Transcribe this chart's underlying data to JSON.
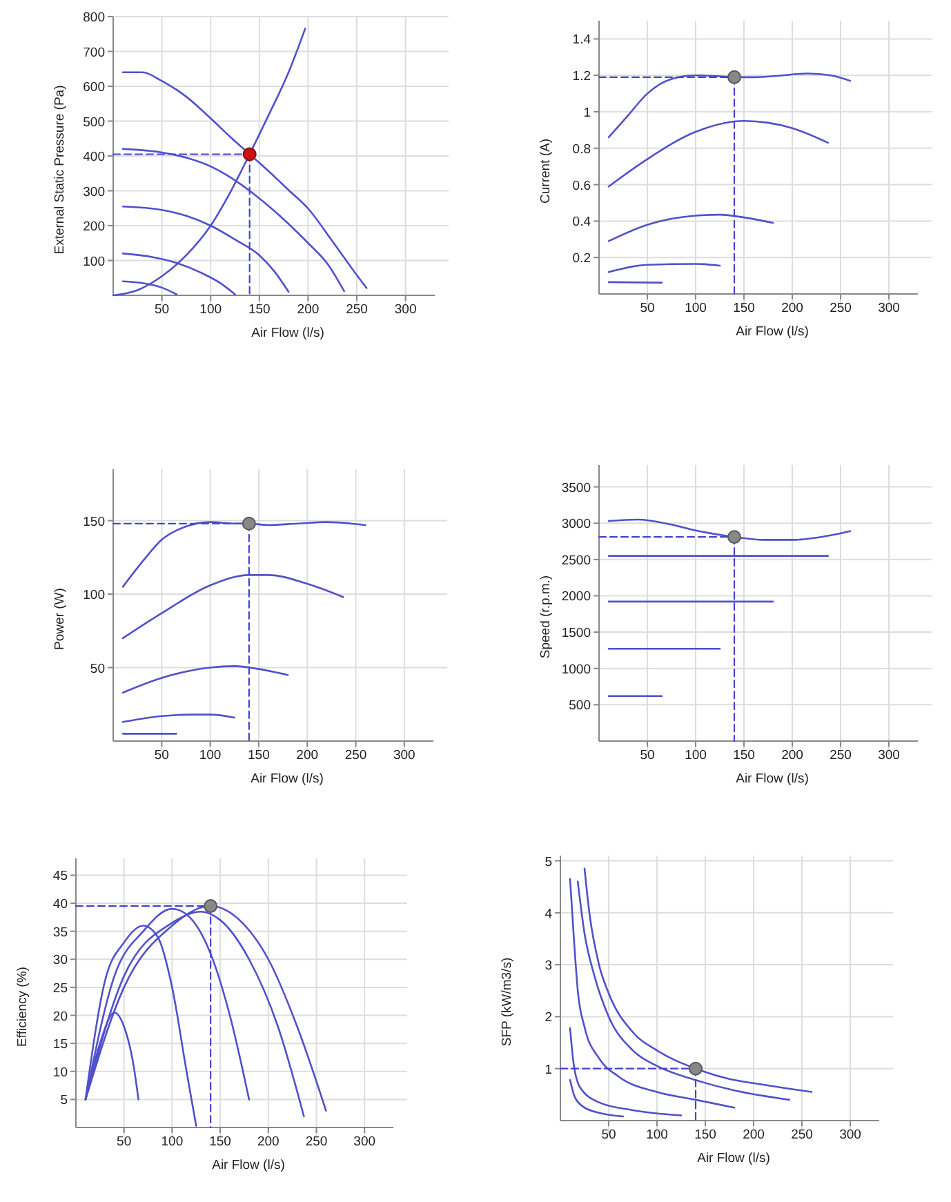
{
  "chart_data": [
    {
      "type": "line",
      "xlabel": "Air Flow (l/s)",
      "ylabel": "External Static Pressure (Pa)",
      "xlim": [
        0,
        330
      ],
      "xticks": [
        50,
        100,
        150,
        200,
        250,
        300
      ],
      "ylim": [
        0,
        800
      ],
      "yticks": [
        100,
        200,
        300,
        400,
        500,
        600,
        700,
        800
      ],
      "grid": true,
      "series": [
        {
          "color": "#5050cc",
          "x": [
            10,
            30,
            50,
            75,
            100,
            120,
            140,
            160,
            180,
            200,
            225,
            250,
            260
          ],
          "values": [
            640,
            640,
            615,
            570,
            508,
            455,
            405,
            355,
            302,
            249,
            155,
            58,
            21
          ]
        },
        {
          "color": "#5050cc",
          "x": [
            10,
            50,
            75,
            100,
            125,
            140,
            160,
            180,
            200,
            220,
            237
          ],
          "values": [
            420,
            410,
            395,
            370,
            330,
            300,
            255,
            205,
            150,
            90,
            12
          ]
        },
        {
          "color": "#5050cc",
          "x": [
            10,
            50,
            75,
            100,
            125,
            150,
            165,
            180
          ],
          "values": [
            255,
            245,
            228,
            200,
            160,
            115,
            70,
            10
          ]
        },
        {
          "color": "#5050cc",
          "x": [
            10,
            40,
            65,
            90,
            110,
            125
          ],
          "values": [
            120,
            110,
            93,
            65,
            35,
            3
          ]
        },
        {
          "color": "#5050cc",
          "x": [
            10,
            30,
            50,
            65
          ],
          "values": [
            40,
            35,
            22,
            3
          ]
        },
        {
          "color": "#5050cc",
          "x": [
            0,
            25,
            50,
            75,
            100,
            120,
            140,
            160,
            180,
            197
          ],
          "values": [
            0,
            15,
            55,
            115,
            200,
            295,
            405,
            520,
            640,
            765
          ]
        },
        {
          "type": "line",
          "line_style": "dashed",
          "color": "#4444cc",
          "x": [
            0,
            140
          ],
          "values": [
            405,
            405
          ]
        },
        {
          "type": "line",
          "line_style": "dashed",
          "color": "#4444cc",
          "x": [
            140,
            140
          ],
          "values": [
            405,
            0
          ]
        },
        {
          "type": "scatter",
          "marker": "circle",
          "color": "#cc1111",
          "x": [
            140
          ],
          "values": [
            405
          ]
        }
      ]
    },
    {
      "type": "line",
      "xlabel": "Air Flow (l/s)",
      "ylabel": "Current (A)",
      "xlim": [
        0,
        330
      ],
      "xticks": [
        50,
        100,
        150,
        200,
        250,
        300
      ],
      "ylim": [
        0,
        1.5
      ],
      "yticks": [
        0.2,
        0.4,
        0.6,
        0.8,
        1,
        1.2,
        1.4
      ],
      "grid": true,
      "series": [
        {
          "color": "#5050cc",
          "x": [
            10,
            30,
            50,
            75,
            100,
            125,
            140,
            160,
            190,
            215,
            240,
            260
          ],
          "values": [
            0.86,
            0.98,
            1.1,
            1.18,
            1.2,
            1.195,
            1.19,
            1.19,
            1.2,
            1.21,
            1.2,
            1.17
          ]
        },
        {
          "color": "#5050cc",
          "x": [
            10,
            50,
            100,
            150,
            175,
            200,
            237
          ],
          "values": [
            0.59,
            0.74,
            0.89,
            0.95,
            0.94,
            0.91,
            0.83
          ]
        },
        {
          "color": "#5050cc",
          "x": [
            10,
            50,
            100,
            125,
            150,
            180
          ],
          "values": [
            0.29,
            0.38,
            0.43,
            0.435,
            0.42,
            0.39
          ]
        },
        {
          "color": "#5050cc",
          "x": [
            10,
            50,
            100,
            125
          ],
          "values": [
            0.12,
            0.16,
            0.165,
            0.155
          ]
        },
        {
          "color": "#5050cc",
          "x": [
            10,
            65
          ],
          "values": [
            0.065,
            0.062
          ]
        },
        {
          "type": "line",
          "line_style": "dashed",
          "color": "#4444cc",
          "x": [
            0,
            140
          ],
          "values": [
            1.19,
            1.19
          ]
        },
        {
          "type": "line",
          "line_style": "dashed",
          "color": "#4444cc",
          "x": [
            140,
            140
          ],
          "values": [
            1.19,
            0
          ]
        },
        {
          "type": "scatter",
          "marker": "circle",
          "color": "#888888",
          "x": [
            140
          ],
          "values": [
            1.19
          ]
        }
      ]
    },
    {
      "type": "line",
      "xlabel": "Air Flow (l/s)",
      "ylabel": "Power (W)",
      "xlim": [
        0,
        330
      ],
      "xticks": [
        50,
        100,
        150,
        200,
        250,
        300
      ],
      "ylim": [
        0,
        185
      ],
      "yticks": [
        50,
        100,
        150
      ],
      "grid": true,
      "series": [
        {
          "color": "#5050cc",
          "x": [
            10,
            30,
            50,
            75,
            100,
            125,
            140,
            160,
            190,
            220,
            260
          ],
          "values": [
            105,
            122,
            137,
            146,
            149,
            148,
            148,
            147,
            148,
            149,
            147
          ]
        },
        {
          "color": "#5050cc",
          "x": [
            10,
            50,
            100,
            140,
            160,
            200,
            237
          ],
          "values": [
            70,
            87,
            106,
            113,
            113,
            107,
            98
          ]
        },
        {
          "color": "#5050cc",
          "x": [
            10,
            50,
            100,
            125,
            150,
            180
          ],
          "values": [
            33,
            43,
            50,
            51,
            49,
            45
          ]
        },
        {
          "color": "#5050cc",
          "x": [
            10,
            50,
            80,
            100,
            125
          ],
          "values": [
            13,
            17,
            18,
            18,
            16
          ]
        },
        {
          "color": "#5050cc",
          "x": [
            10,
            65
          ],
          "values": [
            5,
            5
          ]
        },
        {
          "type": "line",
          "line_style": "dashed",
          "color": "#4444cc",
          "x": [
            0,
            140
          ],
          "values": [
            148,
            148
          ]
        },
        {
          "type": "line",
          "line_style": "dashed",
          "color": "#4444cc",
          "x": [
            140,
            140
          ],
          "values": [
            148,
            0
          ]
        },
        {
          "type": "scatter",
          "marker": "circle",
          "color": "#888888",
          "x": [
            140
          ],
          "values": [
            148
          ]
        }
      ]
    },
    {
      "type": "line",
      "xlabel": "Air Flow (l/s)",
      "ylabel": "Speed (r.p.m.)",
      "xlim": [
        0,
        330
      ],
      "xticks": [
        50,
        100,
        150,
        200,
        250,
        300
      ],
      "ylim": [
        0,
        3800
      ],
      "yticks": [
        500,
        1000,
        1500,
        2000,
        2500,
        3000,
        3500
      ],
      "grid": true,
      "series": [
        {
          "color": "#5050cc",
          "x": [
            10,
            40,
            75,
            100,
            140,
            170,
            200,
            230,
            260
          ],
          "values": [
            3030,
            3050,
            2980,
            2900,
            2810,
            2770,
            2770,
            2810,
            2890
          ]
        },
        {
          "color": "#5050cc",
          "x": [
            10,
            237
          ],
          "values": [
            2550,
            2550
          ]
        },
        {
          "color": "#5050cc",
          "x": [
            10,
            180
          ],
          "values": [
            1920,
            1920
          ]
        },
        {
          "color": "#5050cc",
          "x": [
            10,
            125
          ],
          "values": [
            1270,
            1270
          ]
        },
        {
          "color": "#5050cc",
          "x": [
            10,
            65
          ],
          "values": [
            620,
            620
          ]
        },
        {
          "type": "line",
          "line_style": "dashed",
          "color": "#4444cc",
          "x": [
            0,
            140
          ],
          "values": [
            2810,
            2810
          ]
        },
        {
          "type": "line",
          "line_style": "dashed",
          "color": "#4444cc",
          "x": [
            140,
            140
          ],
          "values": [
            2810,
            0
          ]
        },
        {
          "type": "scatter",
          "marker": "circle",
          "color": "#888888",
          "x": [
            140
          ],
          "values": [
            2810
          ]
        }
      ]
    },
    {
      "type": "line",
      "xlabel": "Air Flow (l/s)",
      "ylabel": "Efficiency (%)",
      "xlim": [
        0,
        330
      ],
      "xticks": [
        50,
        100,
        150,
        200,
        250,
        300
      ],
      "ylim": [
        0,
        48
      ],
      "yticks": [
        5,
        10,
        15,
        20,
        25,
        30,
        35,
        40,
        45
      ],
      "grid": true,
      "series": [
        {
          "color": "#5050cc",
          "x": [
            10,
            50,
            100,
            140,
            170,
            200,
            230,
            260
          ],
          "values": [
            5,
            25,
            36,
            39.5,
            37,
            30,
            18,
            3
          ]
        },
        {
          "color": "#5050cc",
          "x": [
            10,
            50,
            100,
            130,
            150,
            180,
            210,
            237
          ],
          "values": [
            5,
            27,
            36.5,
            38.5,
            37,
            30,
            18,
            2
          ]
        },
        {
          "color": "#5050cc",
          "x": [
            10,
            40,
            70,
            100,
            115,
            140,
            160,
            180
          ],
          "values": [
            5,
            27,
            35,
            39,
            38,
            31,
            20,
            5
          ]
        },
        {
          "color": "#5050cc",
          "x": [
            10,
            30,
            50,
            70,
            85,
            100,
            115,
            125
          ],
          "values": [
            5,
            26,
            33,
            36,
            34,
            25,
            10,
            0.3
          ]
        },
        {
          "color": "#5050cc",
          "x": [
            10,
            25,
            40,
            50,
            60,
            65
          ],
          "values": [
            5,
            15,
            20.5,
            18,
            11,
            5
          ]
        },
        {
          "type": "line",
          "line_style": "dashed",
          "color": "#4444cc",
          "x": [
            0,
            140
          ],
          "values": [
            39.5,
            39.5
          ]
        },
        {
          "type": "line",
          "line_style": "dashed",
          "color": "#4444cc",
          "x": [
            140,
            140
          ],
          "values": [
            39.5,
            0
          ]
        },
        {
          "type": "scatter",
          "marker": "circle",
          "color": "#888888",
          "x": [
            140
          ],
          "values": [
            39.5
          ]
        }
      ]
    },
    {
      "type": "line",
      "xlabel": "Air Flow (l/s)",
      "ylabel": "SFP (kW/m3/s)",
      "xlim": [
        0,
        330
      ],
      "xticks": [
        50,
        100,
        150,
        200,
        250,
        300
      ],
      "ylim": [
        0,
        5.1
      ],
      "yticks": [
        1,
        2,
        3,
        4,
        5
      ],
      "grid": true,
      "series": [
        {
          "color": "#5050cc",
          "x": [
            25,
            30,
            40,
            50,
            75,
            100,
            140,
            175,
            200,
            260
          ],
          "values": [
            4.85,
            4.0,
            3.0,
            2.45,
            1.7,
            1.35,
            1.0,
            0.8,
            0.72,
            0.55
          ]
        },
        {
          "color": "#5050cc",
          "x": [
            18,
            25,
            35,
            50,
            75,
            100,
            140,
            180,
            237
          ],
          "values": [
            4.6,
            3.6,
            2.8,
            2.0,
            1.35,
            1.05,
            0.78,
            0.58,
            0.4
          ]
        },
        {
          "color": "#5050cc",
          "x": [
            10,
            14,
            18,
            25,
            40,
            60,
            100,
            140,
            180
          ],
          "values": [
            4.65,
            3.5,
            2.5,
            1.8,
            1.2,
            0.85,
            0.55,
            0.4,
            0.25
          ]
        },
        {
          "color": "#5050cc",
          "x": [
            10,
            13,
            20,
            40,
            75,
            125
          ],
          "values": [
            1.78,
            1.2,
            0.65,
            0.35,
            0.2,
            0.1
          ]
        },
        {
          "color": "#5050cc",
          "x": [
            10,
            15,
            25,
            40,
            65
          ],
          "values": [
            0.78,
            0.45,
            0.25,
            0.15,
            0.08
          ]
        },
        {
          "type": "line",
          "line_style": "dashed",
          "color": "#4444cc",
          "x": [
            0,
            140
          ],
          "values": [
            1.0,
            1.0
          ]
        },
        {
          "type": "line",
          "line_style": "dashed",
          "color": "#4444cc",
          "x": [
            140,
            140
          ],
          "values": [
            1.0,
            0
          ]
        },
        {
          "type": "scatter",
          "marker": "circle",
          "color": "#888888",
          "x": [
            140
          ],
          "values": [
            1.0
          ]
        }
      ]
    }
  ]
}
